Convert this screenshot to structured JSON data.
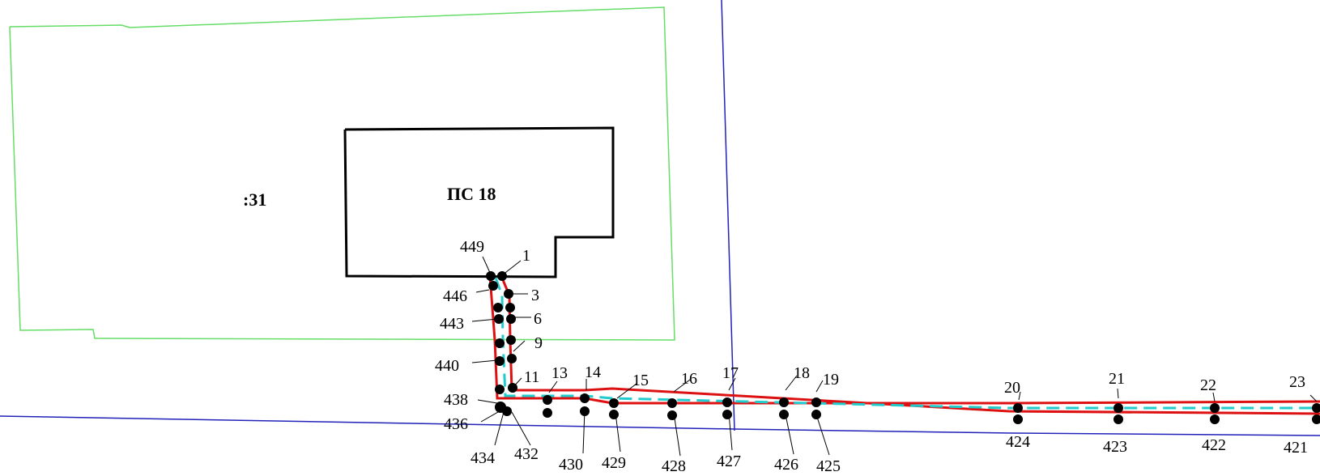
{
  "map": {
    "parcel_label": ":31",
    "building_label": "ПС 18",
    "colors": {
      "parcel_boundary": "#66dd66",
      "cadastral_line": "#2222bb",
      "building_outline": "#000000",
      "route_boundary": "#dd1111",
      "route_axis": "#22cccc",
      "point": "#000000"
    },
    "points": [
      {
        "id": "p449",
        "label": "449"
      },
      {
        "id": "p1",
        "label": "1"
      },
      {
        "id": "p446",
        "label": "446"
      },
      {
        "id": "p3",
        "label": "3"
      },
      {
        "id": "p443",
        "label": "443"
      },
      {
        "id": "p6",
        "label": "6"
      },
      {
        "id": "p9",
        "label": "9"
      },
      {
        "id": "p440",
        "label": "440"
      },
      {
        "id": "p11",
        "label": "11"
      },
      {
        "id": "p13",
        "label": "13"
      },
      {
        "id": "p14",
        "label": "14"
      },
      {
        "id": "p15",
        "label": "15"
      },
      {
        "id": "p16",
        "label": "16"
      },
      {
        "id": "p17",
        "label": "17"
      },
      {
        "id": "p18",
        "label": "18"
      },
      {
        "id": "p19",
        "label": "19"
      },
      {
        "id": "p20",
        "label": "20"
      },
      {
        "id": "p21",
        "label": "21"
      },
      {
        "id": "p22",
        "label": "22"
      },
      {
        "id": "p23",
        "label": "23"
      },
      {
        "id": "p438",
        "label": "438"
      },
      {
        "id": "p436",
        "label": "436"
      },
      {
        "id": "p434",
        "label": "434"
      },
      {
        "id": "p432",
        "label": "432"
      },
      {
        "id": "p430",
        "label": "430"
      },
      {
        "id": "p429",
        "label": "429"
      },
      {
        "id": "p428",
        "label": "428"
      },
      {
        "id": "p427",
        "label": "427"
      },
      {
        "id": "p426",
        "label": "426"
      },
      {
        "id": "p425",
        "label": "425"
      },
      {
        "id": "p424",
        "label": "424"
      },
      {
        "id": "p423",
        "label": "423"
      },
      {
        "id": "p422",
        "label": "422"
      },
      {
        "id": "p421",
        "label": "421"
      }
    ]
  }
}
